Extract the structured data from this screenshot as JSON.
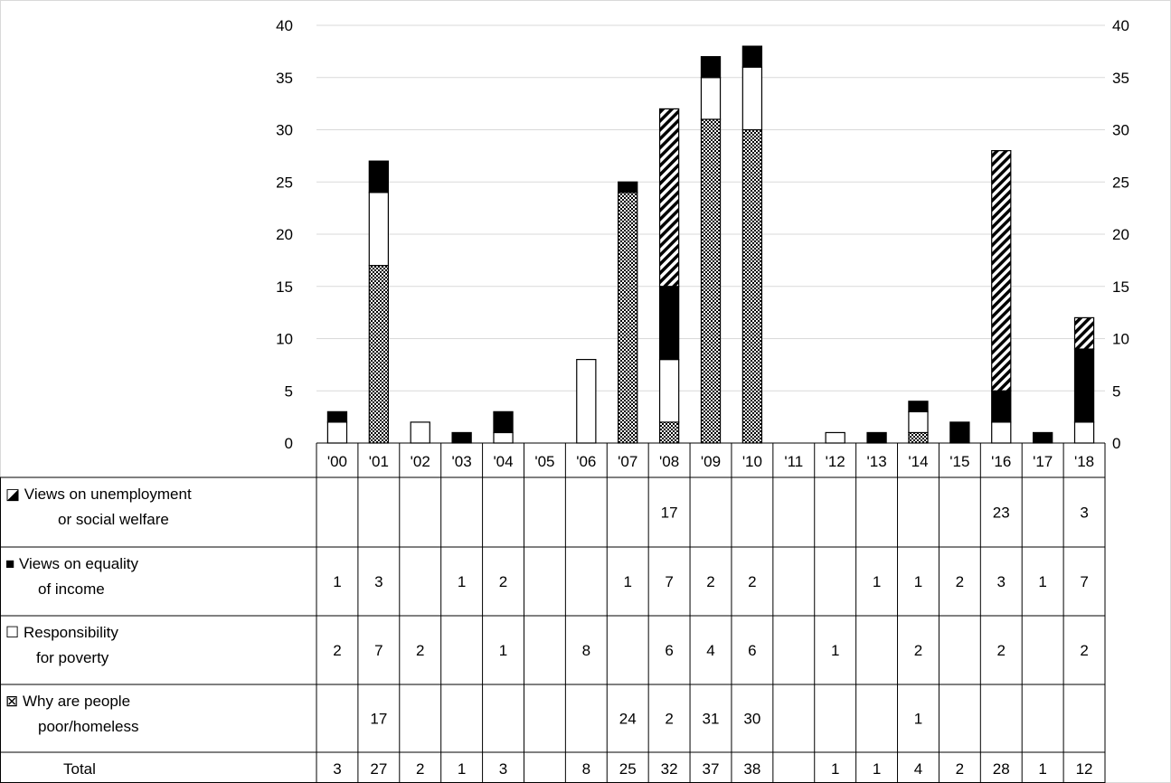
{
  "chart_data": {
    "type": "bar",
    "stacked": true,
    "categories": [
      "'00",
      "'01",
      "'02",
      "'03",
      "'04",
      "'05",
      "'06",
      "'07",
      "'08",
      "'09",
      "'10",
      "'11",
      "'12",
      "'13",
      "'14",
      "'15",
      "'16",
      "'17",
      "'18"
    ],
    "ylim": [
      0,
      40
    ],
    "yticks": [
      0,
      5,
      10,
      15,
      20,
      25,
      30,
      35,
      40
    ],
    "grid": true,
    "axes": "left-and-right",
    "series": [
      {
        "name": "Why are people poor/homeless",
        "label_lines": [
          "Why are people",
          "poor/homeless"
        ],
        "marker": "⊠",
        "pattern": "checker",
        "values": [
          null,
          17,
          null,
          null,
          null,
          null,
          null,
          24,
          2,
          31,
          30,
          null,
          null,
          null,
          1,
          null,
          null,
          null,
          null
        ]
      },
      {
        "name": "Responsibility for poverty",
        "label_lines": [
          "Responsibility",
          "for poverty"
        ],
        "marker": "☐",
        "pattern": "white",
        "values": [
          2,
          7,
          2,
          null,
          1,
          null,
          8,
          null,
          6,
          4,
          6,
          null,
          1,
          null,
          2,
          null,
          2,
          null,
          2
        ]
      },
      {
        "name": "Views on equality of income",
        "label_lines": [
          "Views on equality",
          "of income"
        ],
        "marker": "■",
        "pattern": "black",
        "values": [
          1,
          3,
          null,
          1,
          2,
          null,
          null,
          1,
          7,
          2,
          2,
          null,
          null,
          1,
          1,
          2,
          3,
          1,
          7
        ]
      },
      {
        "name": "Views on unemployment or social welfare",
        "label_lines": [
          "Views on unemployment",
          "or social welfare"
        ],
        "marker": "◪",
        "pattern": "diagonal",
        "values": [
          null,
          null,
          null,
          null,
          null,
          null,
          null,
          null,
          17,
          null,
          null,
          null,
          null,
          null,
          null,
          null,
          23,
          null,
          3
        ]
      }
    ],
    "total_label": "Total",
    "totals": [
      3,
      27,
      2,
      1,
      3,
      null,
      8,
      25,
      32,
      37,
      38,
      null,
      1,
      1,
      4,
      2,
      28,
      1,
      12
    ]
  }
}
